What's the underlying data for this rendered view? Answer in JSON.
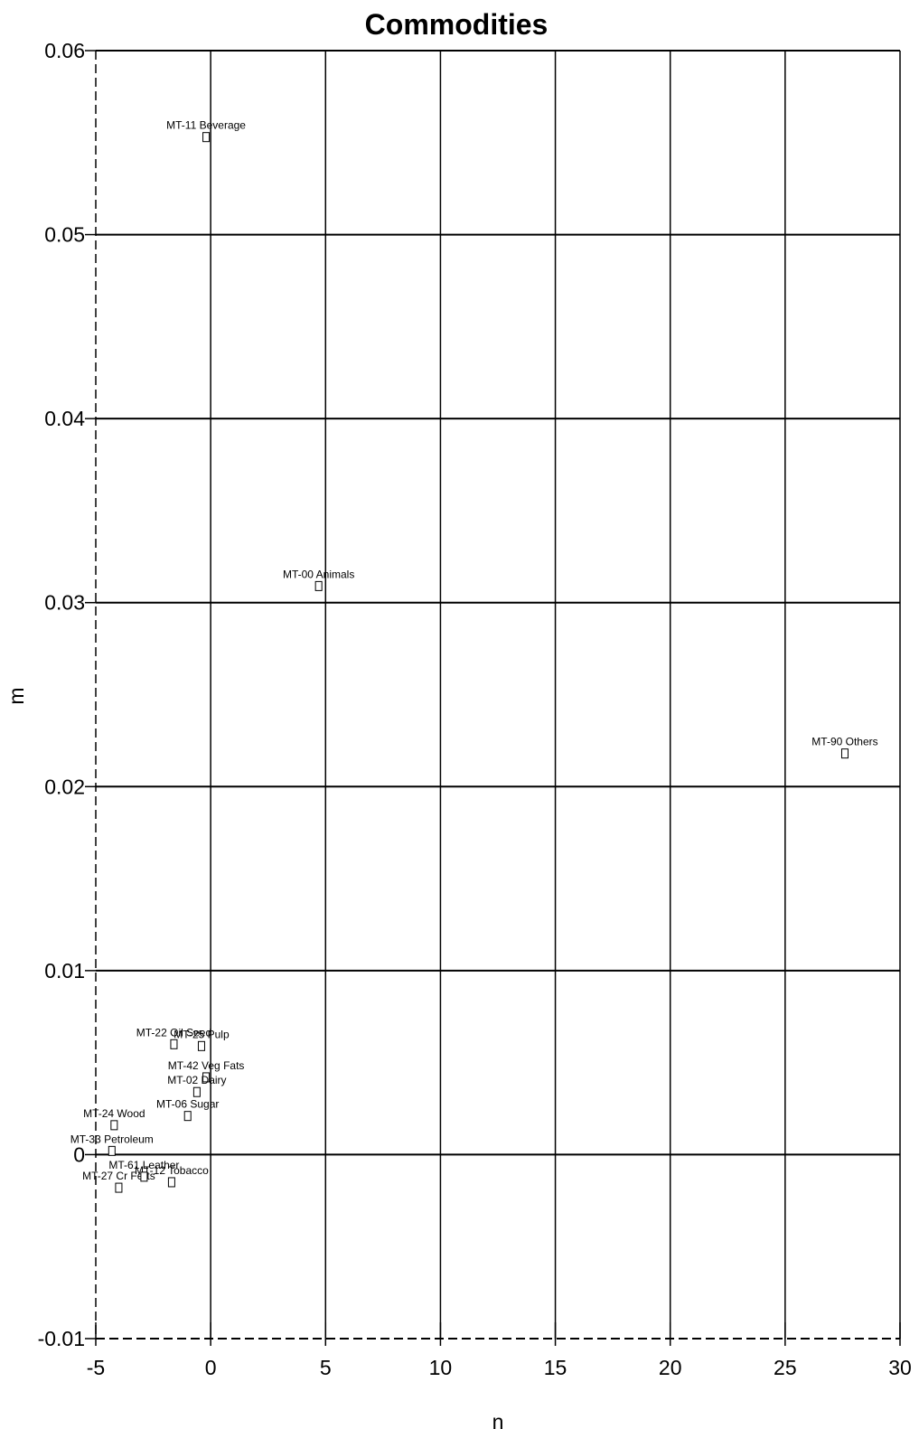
{
  "chart_data": {
    "type": "scatter",
    "title": "Commodities",
    "xlabel": "n",
    "ylabel": "m",
    "xlim": [
      -5,
      30
    ],
    "ylim": [
      -0.01,
      0.06
    ],
    "x_ticks": [
      "-5",
      "0",
      "5",
      "10",
      "15",
      "20",
      "25",
      "30"
    ],
    "y_ticks": [
      "0.06",
      "0.05",
      "0.04",
      "0.03",
      "0.02",
      "0.01",
      "0",
      "-0.01"
    ],
    "grid": true,
    "marker": "square",
    "points": [
      {
        "label": "MT-11 Beverage",
        "x": -0.2,
        "y": 0.0553
      },
      {
        "label": "MT-00 Animals",
        "x": 4.7,
        "y": 0.0309
      },
      {
        "label": "MT-90 Others",
        "x": 27.6,
        "y": 0.0218
      },
      {
        "label": "MT-22 Oil Seed",
        "x": -1.6,
        "y": 0.006
      },
      {
        "label": "MT-25 Pulp",
        "x": -0.4,
        "y": 0.0059
      },
      {
        "label": "MT-42 Veg Fats",
        "x": -0.2,
        "y": 0.0042
      },
      {
        "label": "MT-02 Dairy",
        "x": -0.6,
        "y": 0.0034
      },
      {
        "label": "MT-06 Sugar",
        "x": -1.0,
        "y": 0.0021
      },
      {
        "label": "MT-24 Wood",
        "x": -4.2,
        "y": 0.0016
      },
      {
        "label": "MT-27 Cr Ferts",
        "x": -4.0,
        "y": -0.0018
      },
      {
        "label": "MT-12 Tobacco",
        "x": -1.7,
        "y": -0.0015
      },
      {
        "label": "MT-61 Leather",
        "x": -2.9,
        "y": -0.0012
      },
      {
        "label": "MT-33 Petroleum",
        "x": -4.3,
        "y": 0.0002
      }
    ]
  }
}
